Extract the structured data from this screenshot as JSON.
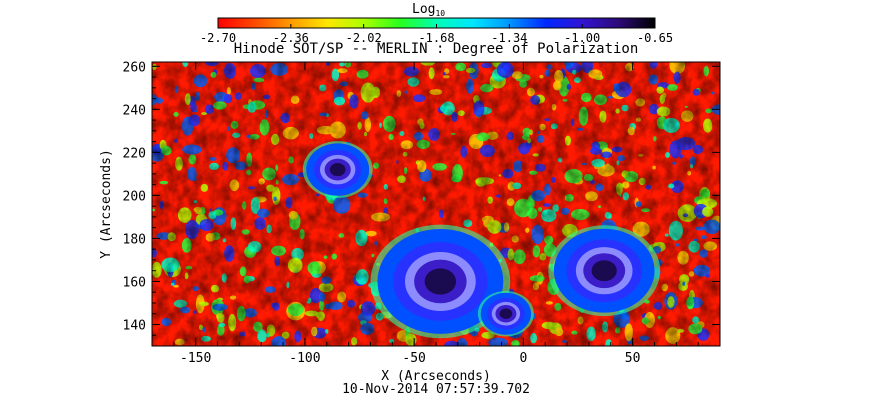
{
  "title": "Hinode SOT/SP -- MERLIN : Degree of Polarization",
  "colorbar": {
    "label": "Log",
    "label_sub": "10",
    "ticks": [
      "-2.70",
      "-2.36",
      "-2.02",
      "-1.68",
      "-1.34",
      "-1.00",
      "-0.65"
    ],
    "range": [
      -2.7,
      -0.65
    ],
    "colors": [
      "#ff0000",
      "#ff4a00",
      "#ff9a00",
      "#ffe600",
      "#aaff00",
      "#28ff1e",
      "#00ffb4",
      "#00e6ff",
      "#0096ff",
      "#0028ff",
      "#3214d2",
      "#2d0a78",
      "#000000"
    ]
  },
  "axes": {
    "xlabel": "X (Arcseconds)",
    "ylabel": "Y (Arcseconds)",
    "xlim": [
      -170,
      90
    ],
    "ylim": [
      130,
      262
    ],
    "xticks": [
      "-150",
      "-100",
      "-50",
      "0",
      "50"
    ],
    "yticks": [
      "140",
      "160",
      "180",
      "200",
      "220",
      "240",
      "260"
    ]
  },
  "timestamp": "10-Nov-2014 07:57:39.702",
  "features": [
    {
      "name": "sunspot-west-umbra",
      "x": 37,
      "y": 165,
      "r": 8
    },
    {
      "name": "sunspot-central-group",
      "x": -38,
      "y": 160,
      "r": 10
    },
    {
      "name": "pore-north",
      "x": -85,
      "y": 212,
      "r": 5
    },
    {
      "name": "pore-south",
      "x": -8,
      "y": 145,
      "r": 4
    }
  ]
}
